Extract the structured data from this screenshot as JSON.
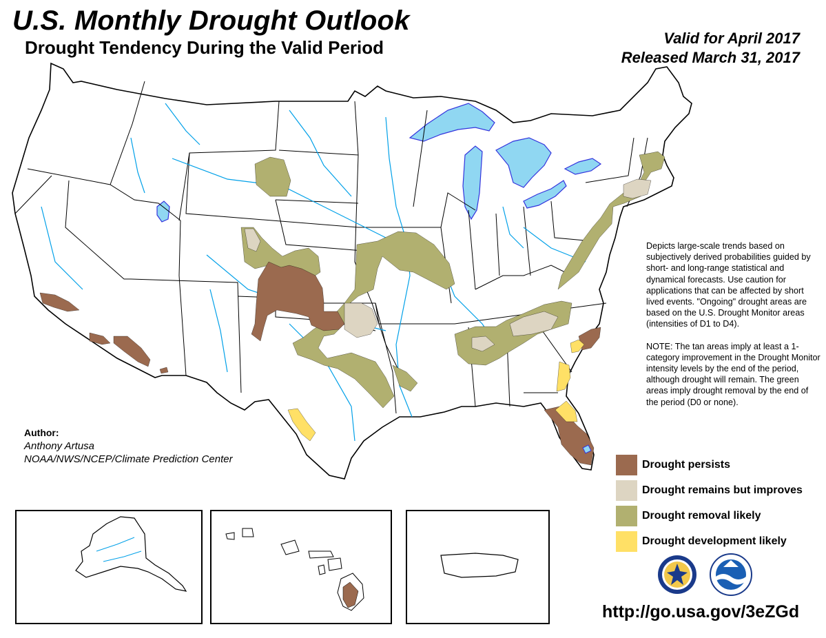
{
  "header": {
    "title": "U.S. Monthly Drought Outlook",
    "subtitle": "Drought Tendency During the Valid Period",
    "valid": "Valid for April 2017",
    "released": "Released March 31, 2017"
  },
  "description": {
    "paragraph1": "Depicts large-scale trends based on subjectively derived probabilities guided by short- and long-range statistical and dynamical forecasts. Use caution for applications that can be affected by short lived events. \"Ongoing\" drought areas are based on the U.S. Drought Monitor areas (intensities of D1 to D4).",
    "paragraph2": "NOTE: The tan areas imply at least a 1-category improvement in the Drought Monitor intensity levels by the end of the period, although drought will remain. The green areas imply drought removal by the end of the period (D0 or none)."
  },
  "author": {
    "heading": "Author:",
    "name": "Anthony Artusa",
    "org": "NOAA/NWS/NCEP/Climate Prediction Center"
  },
  "legend": [
    {
      "label": "Drought persists",
      "color": "#9b6a4f"
    },
    {
      "label": "Drought remains but improves",
      "color": "#ddd5c2"
    },
    {
      "label": "Drought removal likely",
      "color": "#b1b070"
    },
    {
      "label": "Drought development likely",
      "color": "#ffe066"
    }
  ],
  "colors": {
    "persists": "#9b6a4f",
    "improves": "#ddd5c2",
    "removal": "#b1b070",
    "development": "#ffe066",
    "water": "#90d7f2",
    "river": "#00a0e8",
    "lake_outline": "#3333dd"
  },
  "logos": [
    "noaa-nws-seal-icon",
    "noaa-logo-icon"
  ],
  "url": "http://go.usa.gov/3eZGd"
}
